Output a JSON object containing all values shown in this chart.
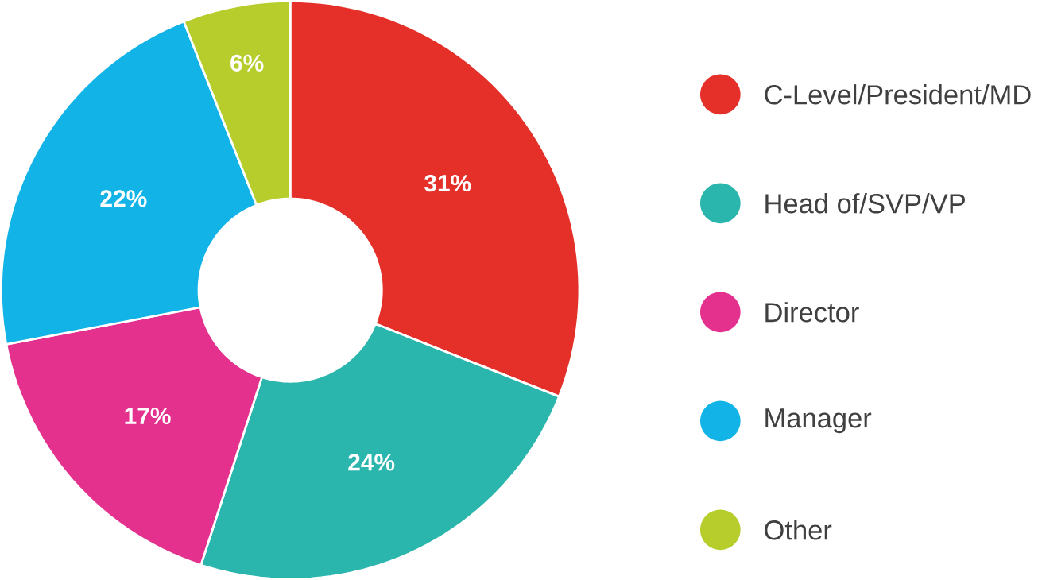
{
  "chart_data": {
    "type": "donut",
    "categories": [
      "C-Level/President/MD",
      "Head of/SVP/VP",
      "Director",
      "Manager",
      "Other"
    ],
    "values": [
      31,
      24,
      17,
      22,
      6
    ],
    "colors": [
      "#e5302a",
      "#2ab5ad",
      "#e5318e",
      "#12b4e8",
      "#b6cd2c"
    ],
    "value_labels": [
      "31%",
      "24%",
      "17%",
      "22%",
      "6%"
    ],
    "legend": "right"
  }
}
